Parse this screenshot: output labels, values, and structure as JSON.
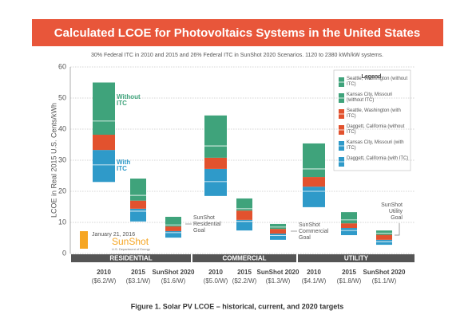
{
  "chart_data": {
    "type": "floating-bar",
    "title": "Calculated LCOE for Photovoltaics Systems in the United States",
    "subtitle": "30% Federal ITC in 2010 and 2015 and 26% Federal ITC in SunShot 2020 Scenarios. 1120 to 2380 kWh/kW systems.",
    "y_label": "LCOE in Real 2015 U.S. Cents/kWh",
    "caption": "Figure 1. Solar PV LCOE – historical, current, and 2020 targets",
    "categories": [
      "2010",
      "2015",
      "SunShot 2020",
      "2010",
      "2015",
      "SunShot 2020",
      "2010",
      "2015",
      "SunShot 2020"
    ],
    "category_sublabels": [
      "($6.2/W)",
      "($3.1/W)",
      "($1.6/W)",
      "($5.0/W)",
      "($2.2/W)",
      "($1.3/W)",
      "($4.1/W)",
      "($1.8/W)",
      "($1.1/W)"
    ],
    "groups": [
      "RESIDENTIAL",
      "COMMERCIAL",
      "UTILITY"
    ],
    "legend_title": "Legend",
    "series": [
      {
        "name": "Seattle, Washington (without ITC)",
        "color": "#3fa37b",
        "values": [
          55,
          24.1,
          11.8,
          44.4,
          17.7,
          9.5,
          35.4,
          13.3,
          7.4
        ]
      },
      {
        "name": "Kansas City, Missouri (without ITC)",
        "color": "#3fa37b",
        "values": [
          42.6,
          18.7,
          9.2,
          34.6,
          14.4,
          8.5,
          27.2,
          10.8,
          6.5
        ]
      },
      {
        "name": "Seattle, Washington (with ITC)",
        "color": "#e2522e",
        "values": [
          38.2,
          17,
          8.7,
          30.8,
          13.8,
          7.9,
          24.6,
          9.7,
          6
        ]
      },
      {
        "name": "Daggett, California (without ITC)",
        "color": "#e2522e",
        "values": [
          33.3,
          14.4,
          7.2,
          27.2,
          10.8,
          6.4,
          21.5,
          8.2,
          4.4
        ]
      },
      {
        "name": "Kansas City, Missouri (with ITC)",
        "color": "#2f9ac9",
        "values": [
          28.5,
          13.6,
          6.7,
          23.1,
          10.3,
          5.8,
          20,
          7.4,
          3.8
        ]
      },
      {
        "name": "Daggett, California (with ITC)",
        "color": "#2f9ac9",
        "values": [
          23,
          10.3,
          5.1,
          18.5,
          7.4,
          4.4,
          14.9,
          5.9,
          2.8
        ]
      }
    ],
    "annotations": [
      "Without ITC",
      "With ITC",
      "SunShot Residential Goal",
      "SunShot Commercial Goal",
      "SunShot Utility Goal"
    ],
    "date": "January 21, 2016",
    "logo": "SunShot",
    "logo_sub": "U.S. Department of Energy",
    "ylim": [
      0,
      60
    ],
    "yticks": [
      0,
      10,
      20,
      30,
      40,
      50,
      60
    ],
    "grid": true,
    "title_color": "#e8563a"
  }
}
